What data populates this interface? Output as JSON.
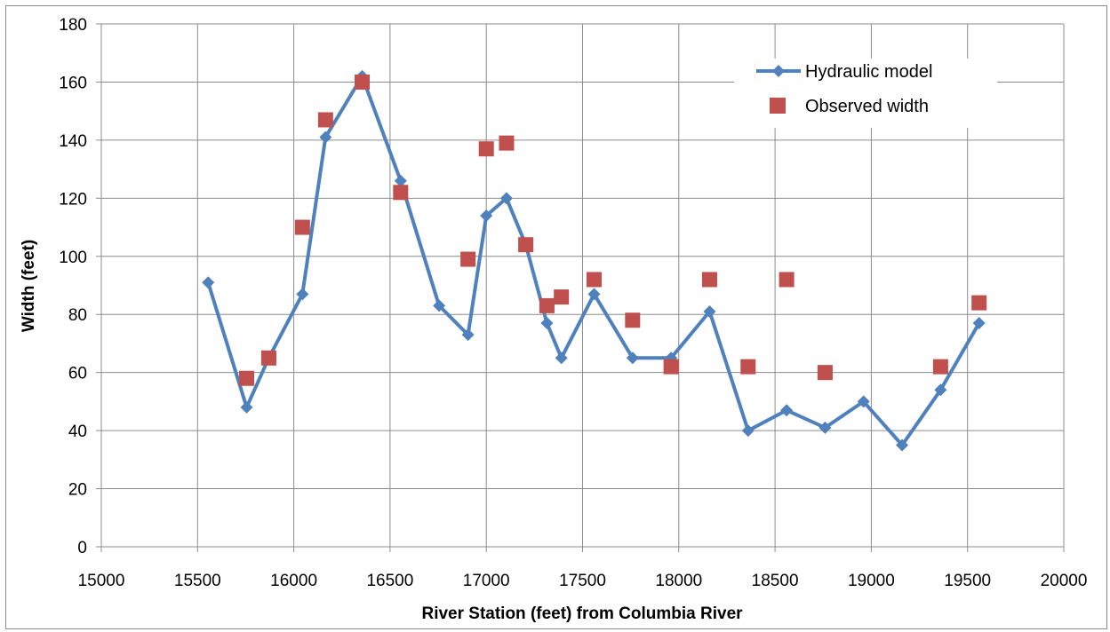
{
  "chart_data": {
    "type": "scatter",
    "title": "",
    "xlabel": "River Station (feet) from Columbia River",
    "ylabel": "Width (feet)",
    "xlim": [
      15000,
      20000
    ],
    "ylim": [
      0,
      180
    ],
    "xticks": [
      15000,
      15500,
      16000,
      16500,
      17000,
      17500,
      18000,
      18500,
      19000,
      19500,
      20000
    ],
    "yticks": [
      0,
      20,
      40,
      60,
      80,
      100,
      120,
      140,
      160,
      180
    ],
    "grid": true,
    "legend_position": "top-right",
    "series": [
      {
        "name": "Hydraulic model",
        "kind": "line-with-diamond-markers",
        "color": "#4f81bd",
        "x": [
          15555,
          15755,
          15870,
          16045,
          16165,
          16355,
          16555,
          16755,
          16905,
          17000,
          17105,
          17205,
          17315,
          17390,
          17560,
          17760,
          17960,
          18160,
          18360,
          18560,
          18760,
          18960,
          19160,
          19360,
          19560
        ],
        "y": [
          91,
          48,
          65,
          87,
          141,
          162,
          126,
          83,
          73,
          114,
          120,
          104,
          77,
          65,
          87,
          65,
          65,
          81,
          40,
          47,
          41,
          50,
          35,
          54,
          77
        ]
      },
      {
        "name": "Observed width",
        "kind": "square-markers",
        "color": "#c0504d",
        "x": [
          15755,
          15870,
          16045,
          16165,
          16355,
          16555,
          16905,
          17000,
          17105,
          17205,
          17315,
          17390,
          17560,
          17760,
          17960,
          18160,
          18360,
          18560,
          18760,
          19360,
          19560
        ],
        "y": [
          58,
          65,
          110,
          147,
          160,
          122,
          99,
          137,
          139,
          104,
          83,
          86,
          92,
          78,
          62,
          92,
          62,
          92,
          60,
          62,
          84
        ]
      }
    ]
  }
}
